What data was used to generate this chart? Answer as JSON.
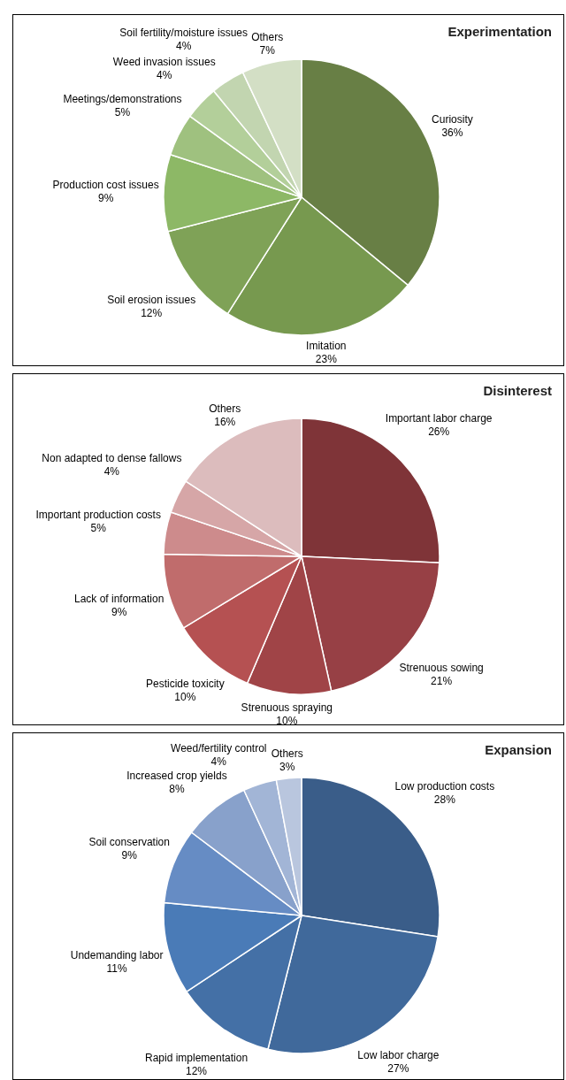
{
  "chart_data": [
    {
      "type": "pie",
      "title": "Experimentation",
      "categories": [
        "Curiosity",
        "Imitation",
        "Soil erosion issues",
        "Production cost issues",
        "Meetings/demonstrations",
        "Weed invasion issues",
        "Soil fertility/moisture issues",
        "Others"
      ],
      "values": [
        36,
        23,
        12,
        9,
        5,
        4,
        4,
        7
      ],
      "colors": [
        "#687f45",
        "#77994f",
        "#7fa257",
        "#8db866",
        "#9fc17f",
        "#b3cf9a",
        "#c2d5b0",
        "#d3dfc5"
      ],
      "value_labels": [
        "36%",
        "23%",
        "12%",
        "9%",
        "5%",
        "4%",
        "4%",
        "7%"
      ]
    },
    {
      "type": "pie",
      "title": "Disinterest",
      "categories": [
        "Important labor charge",
        "Strenuous sowing",
        "Strenuous spraying",
        "Pesticide toxicity",
        "Lack of information",
        "Important production costs",
        "Non adapted to dense fallows",
        "Others"
      ],
      "values": [
        26,
        21,
        10,
        10,
        9,
        5,
        4,
        16
      ],
      "colors": [
        "#7f3438",
        "#974045",
        "#a04447",
        "#b55152",
        "#c06c6c",
        "#cd8b8c",
        "#d6a6a7",
        "#dcbcbd"
      ],
      "value_labels": [
        "26%",
        "21%",
        "10%",
        "10%",
        "9%",
        "5%",
        "4%",
        "16%"
      ]
    },
    {
      "type": "pie",
      "title": "Expansion",
      "categories": [
        "Low production costs",
        "Low labor charge",
        "Rapid implementation",
        "Undemanding labor",
        "Soil conservation",
        "Increased crop yields",
        "Weed/fertility control",
        "Others"
      ],
      "values": [
        28,
        27,
        12,
        11,
        9,
        8,
        4,
        3
      ],
      "colors": [
        "#3a5d89",
        "#40699b",
        "#4470a6",
        "#4a7bb7",
        "#668cc4",
        "#88a1cb",
        "#a2b5d6",
        "#b9c6de"
      ],
      "value_labels": [
        "28%",
        "27%",
        "12%",
        "11%",
        "9%",
        "8%",
        "4%",
        "3%"
      ]
    }
  ]
}
